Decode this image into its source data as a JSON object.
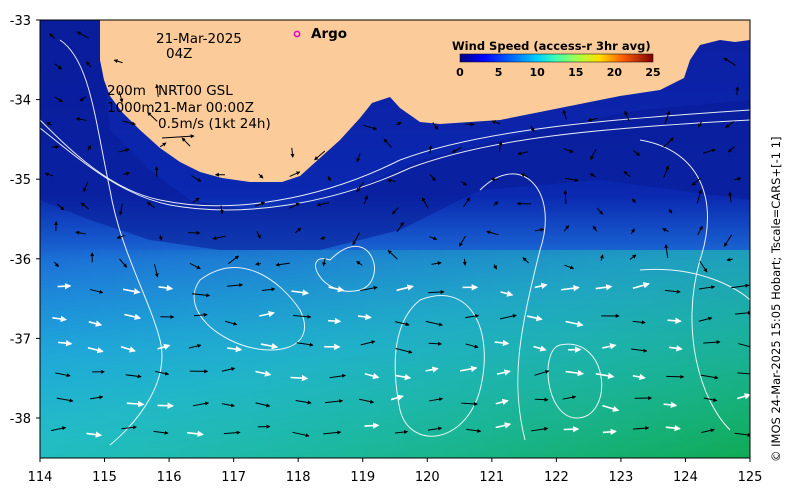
{
  "map": {
    "date_line": "21-Mar-2025",
    "time_line": "04Z",
    "contour_label_1": "200m",
    "contour_label_2": "1000m",
    "product": "NRT00 GSL",
    "product_time": "21-Mar 00:00Z",
    "scale_label": "0.5m/s (1kt 24h)",
    "argo_label": "Argo",
    "copyright": "© IMOS 24-Mar-2025 15:05 Hobart; Tscale=CARS+[-1 1]",
    "lon_ticks": [
      "114",
      "115",
      "116",
      "117",
      "118",
      "119",
      "120",
      "121",
      "122",
      "123",
      "124",
      "125"
    ],
    "lat_ticks": [
      "-33",
      "-34",
      "-35",
      "-36",
      "-37",
      "-38"
    ]
  },
  "colorbar": {
    "title": "Wind Speed (access-r 3hr avg)",
    "ticks": [
      "0",
      "5",
      "10",
      "15",
      "20",
      "25"
    ]
  },
  "colors": {
    "land": "#fbcb99",
    "deep_blue": "#0a22a8",
    "mid_blue": "#1e8fe0",
    "teal": "#22c4a8",
    "green": "#12b060",
    "argo_marker": "#e000d0"
  }
}
